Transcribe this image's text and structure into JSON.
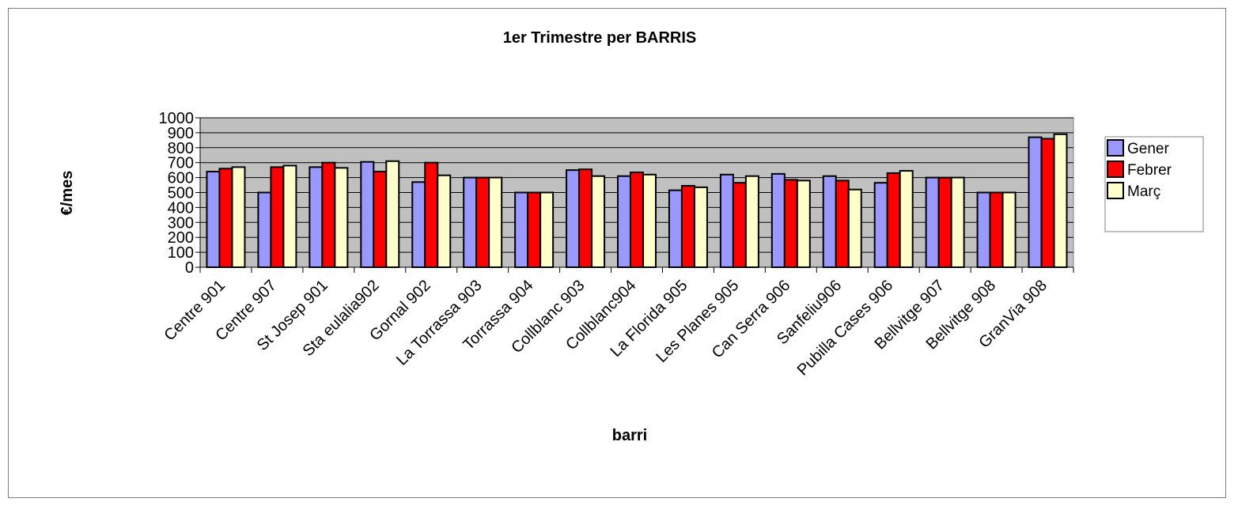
{
  "chart_data": {
    "type": "bar",
    "title": "1er Trimestre per BARRIS",
    "xlabel": "barri",
    "ylabel": "€/mes",
    "ylim": [
      0,
      1000
    ],
    "y_ticks": [
      0,
      100,
      200,
      300,
      400,
      500,
      600,
      700,
      800,
      900,
      1000
    ],
    "grid": true,
    "legend_position": "right",
    "categories": [
      "Centre 901",
      "Centre 907",
      "St Josep 901",
      "Sta eulalia902",
      "Gornal 902",
      "La Torrassa 903",
      "Torrassa 904",
      "Collblanc 903",
      "Collblanc904",
      "La Florida 905",
      "Les Planes 905",
      "Can Serra 906",
      "Sanfeliu906",
      "Pubilla Cases 906",
      "Bellvitge 907",
      "Bellvitge 908",
      "GranVia 908"
    ],
    "series": [
      {
        "name": "Gener",
        "color": "#9999ff",
        "values": [
          640,
          500,
          670,
          705,
          570,
          600,
          500,
          650,
          610,
          515,
          620,
          625,
          610,
          565,
          600,
          500,
          870
        ]
      },
      {
        "name": "Febrer",
        "color": "#ff0000",
        "values": [
          660,
          670,
          700,
          640,
          700,
          600,
          500,
          655,
          635,
          545,
          565,
          585,
          580,
          630,
          600,
          500,
          860
        ]
      },
      {
        "name": "Març",
        "color": "#ffffcc",
        "values": [
          670,
          680,
          665,
          710,
          615,
          600,
          500,
          610,
          620,
          535,
          610,
          580,
          520,
          645,
          600,
          500,
          890
        ]
      }
    ],
    "colors": {
      "plot_bg": "#c0c0c0",
      "grid": "#000000",
      "bar_stroke": "#000000"
    }
  }
}
